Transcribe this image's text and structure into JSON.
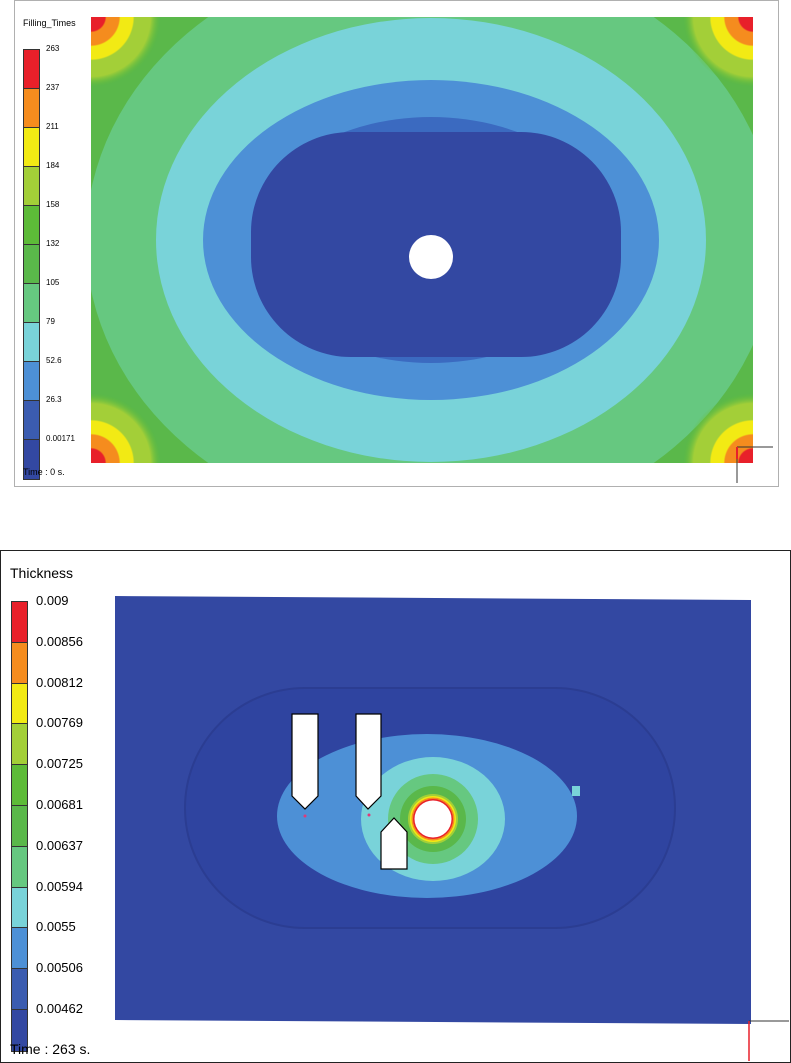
{
  "filling_panel": {
    "title": "Filling_Times",
    "time_label": "Time : 0 s.",
    "legend": [
      {
        "value": "263",
        "color": "#e8202a"
      },
      {
        "value": "237",
        "color": "#f58c1e"
      },
      {
        "value": "211",
        "color": "#f2ea14"
      },
      {
        "value": "184",
        "color": "#a3cf38"
      },
      {
        "value": "158",
        "color": "#5dbb38"
      },
      {
        "value": "132",
        "color": "#5ab84a"
      },
      {
        "value": "105",
        "color": "#66c880"
      },
      {
        "value": "79",
        "color": "#79d3d9"
      },
      {
        "value": "52.6",
        "color": "#4d90d6"
      },
      {
        "value": "26.3",
        "color": "#3b5cb0"
      },
      {
        "value": "0.00171",
        "color": "#3348a2"
      }
    ]
  },
  "thickness_panel": {
    "title": "Thickness",
    "time_label": "Time : 263 s.",
    "legend": [
      {
        "value": "0.009",
        "color": "#e8202a"
      },
      {
        "value": "0.00856",
        "color": "#f58c1e"
      },
      {
        "value": "0.00812",
        "color": "#f2ea14"
      },
      {
        "value": "0.00769",
        "color": "#a3cf38"
      },
      {
        "value": "0.00725",
        "color": "#5dbb38"
      },
      {
        "value": "0.00681",
        "color": "#5ab84a"
      },
      {
        "value": "0.00637",
        "color": "#66c880"
      },
      {
        "value": "0.00594",
        "color": "#79d3d9"
      },
      {
        "value": "0.0055",
        "color": "#4d90d6"
      },
      {
        "value": "0.00506",
        "color": "#3b5cb0"
      },
      {
        "value": "0.00462",
        "color": "#3348a2"
      }
    ]
  }
}
